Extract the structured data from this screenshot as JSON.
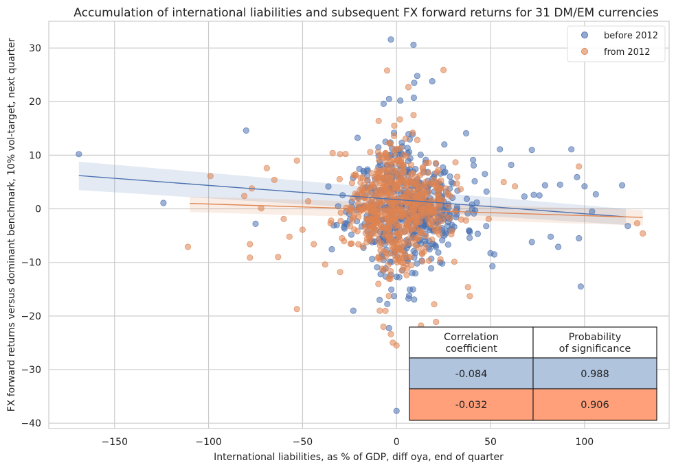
{
  "chart_data": {
    "type": "scatter",
    "title": "Accumulation of international liabilities and subsequent FX forward returns for 31 DM/EM currencies",
    "xlabel": "International liabilities, as % of GDP, diff oya, end of quarter",
    "ylabel": "FX forward returns versus dominant benchmark, 10% vol-target, next quarter",
    "xlim": [
      -185,
      145
    ],
    "ylim": [
      -41,
      35
    ],
    "xticks": [
      -150,
      -100,
      -50,
      0,
      50,
      100
    ],
    "yticks": [
      -40,
      -30,
      -20,
      -10,
      0,
      10,
      20,
      30
    ],
    "grid": true,
    "legend_position": "top-right",
    "series": [
      {
        "name": "before 2012",
        "color": "#4c72b0",
        "regression": {
          "x": [
            -169,
            122
          ],
          "y": [
            6.2,
            -1.5
          ],
          "band_start": [
            3.5,
            8.8
          ],
          "band_end": [
            -3.0,
            0.0
          ]
        },
        "outliers": [
          [
            -169,
            10.2
          ],
          [
            -124,
            1.1
          ],
          [
            -80,
            14.6
          ],
          [
            -75,
            -2.8
          ],
          [
            -23,
            -19.0
          ],
          [
            -3,
            31.6
          ],
          [
            9,
            30.6
          ],
          [
            11,
            24.8
          ],
          [
            19,
            23.8
          ],
          [
            0,
            -37.7
          ],
          [
            37,
            14.1
          ],
          [
            55,
            11.1
          ],
          [
            72,
            11.0
          ],
          [
            93,
            11.1
          ],
          [
            98,
            -14.5
          ],
          [
            87,
            4.5
          ],
          [
            96,
            5.9
          ],
          [
            100,
            4.2
          ],
          [
            104,
            -0.5
          ],
          [
            106,
            2.7
          ],
          [
            120,
            4.4
          ],
          [
            123,
            -3.2
          ],
          [
            72,
            -6.2
          ],
          [
            82,
            -5.2
          ],
          [
            86,
            -7.1
          ],
          [
            97,
            -5.5
          ],
          [
            61,
            8.2
          ],
          [
            79,
            4.4
          ],
          [
            73,
            2.6
          ],
          [
            76,
            2.5
          ],
          [
            68,
            2.3
          ],
          [
            52,
            -8.5
          ],
          [
            50,
            -8.3
          ],
          [
            51,
            -10.7
          ],
          [
            47,
            6.5
          ],
          [
            20,
            -23.0
          ],
          [
            -7,
            -11.5
          ],
          [
            -9,
            -17.0
          ],
          [
            2,
            20.2
          ],
          [
            -4,
            20.5
          ]
        ],
        "cloud": {
          "n": 520,
          "x_mean": 6,
          "x_sd": 15,
          "y_mean": 0.3,
          "y_sd": 7.5,
          "seed": 11
        }
      },
      {
        "name": "from 2012",
        "color": "#dd8452",
        "regression": {
          "x": [
            -110,
            131
          ],
          "y": [
            1.0,
            -1.6
          ],
          "band_start": [
            -0.6,
            2.3
          ],
          "band_end": [
            -3.1,
            -0.2
          ]
        },
        "outliers": [
          [
            -111,
            -7.1
          ],
          [
            -99,
            6.1
          ],
          [
            -78,
            -6.6
          ],
          [
            -78,
            -9.1
          ],
          [
            -77,
            3.8
          ],
          [
            -63,
            -9.0
          ],
          [
            -53,
            -18.7
          ],
          [
            -34,
            10.4
          ],
          [
            -14,
            10.6
          ],
          [
            -5,
            25.8
          ],
          [
            21,
            -21.1
          ],
          [
            25,
            25.9
          ],
          [
            39,
            -16.3
          ],
          [
            49,
            -1.9
          ],
          [
            38,
            -14.6
          ],
          [
            -3,
            -23.4
          ],
          [
            -2,
            -25.0
          ],
          [
            0,
            -25.5
          ],
          [
            97,
            7.9
          ],
          [
            128,
            -2.7
          ],
          [
            131,
            -4.6
          ],
          [
            57,
            5.0
          ],
          [
            63,
            4.2
          ],
          [
            -65,
            5.4
          ],
          [
            -81,
            2.4
          ],
          [
            -44,
            -6.6
          ],
          [
            -38,
            -10.4
          ],
          [
            -30,
            -11.8
          ],
          [
            -29,
            -5.5
          ],
          [
            -47,
            1.4
          ],
          [
            -72,
            0.1
          ],
          [
            -60,
            -1.9
          ],
          [
            -57,
            -5.2
          ],
          [
            -69,
            7.6
          ],
          [
            -53,
            9.0
          ],
          [
            -50,
            -3.9
          ],
          [
            -30,
            10.2
          ],
          [
            -7,
            -22.0
          ],
          [
            13,
            -21.8
          ],
          [
            20,
            -17.8
          ]
        ],
        "cloud": {
          "n": 620,
          "x_mean": 0,
          "x_sd": 13,
          "y_mean": 0.5,
          "y_sd": 6.5,
          "seed": 29
        }
      }
    ]
  },
  "legend": {
    "items": [
      "before 2012",
      "from 2012"
    ]
  },
  "stats_table": {
    "headers": [
      "Correlation\ncoefficient",
      "Probability\nof significance"
    ],
    "rows": [
      {
        "values": [
          "-0.084",
          "0.988"
        ],
        "color": "#b0c4de"
      },
      {
        "values": [
          "-0.032",
          "0.906"
        ],
        "color": "#ffa07a"
      }
    ]
  }
}
